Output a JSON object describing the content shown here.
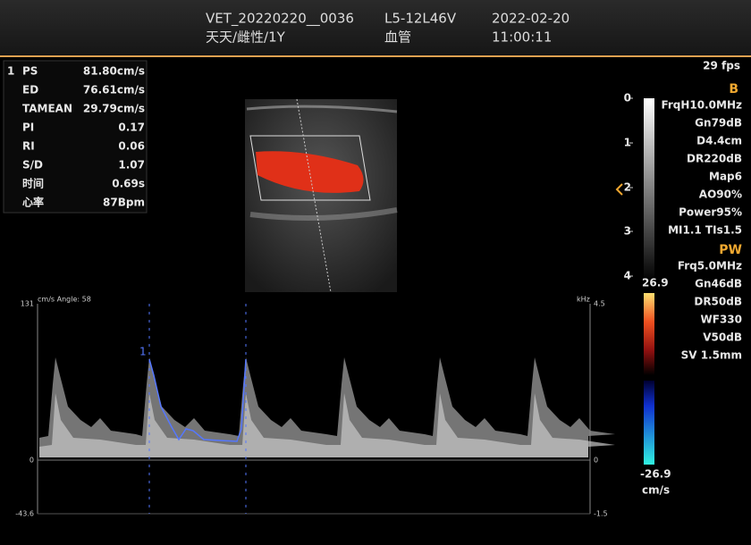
{
  "header": {
    "exam_id": "VET_20220220__0036",
    "patient": "天天/雌性/1Y",
    "probe": "L5-12L46V",
    "preset": "血管",
    "date": "2022-02-20",
    "time": "11:00:11"
  },
  "measurements": {
    "index": "1",
    "rows": [
      [
        "PS",
        "81.80cm/s"
      ],
      [
        "ED",
        "76.61cm/s"
      ],
      [
        "TAMEAN",
        "29.79cm/s"
      ],
      [
        "PI",
        "0.17"
      ],
      [
        "RI",
        "0.06"
      ],
      [
        "S/D",
        "1.07"
      ],
      [
        "时间",
        "0.69s"
      ],
      [
        "心率",
        "87Bpm"
      ]
    ]
  },
  "frame_rate": "29 fps",
  "b_mode": {
    "title": "B",
    "params": [
      "FrqH10.0MHz",
      "Gn79dB",
      "D4.4cm",
      "DR220dB",
      "Map6",
      "AO90%",
      "Power95%",
      "MI1.1 TIs1.5"
    ]
  },
  "pw_mode": {
    "title": "PW",
    "params": [
      "Frq5.0MHz",
      "Gn46dB",
      "DR50dB",
      "WF330",
      "V50dB",
      "SV 1.5mm"
    ]
  },
  "depth_scale": [
    "0",
    "1",
    "2",
    "3",
    "4"
  ],
  "color_scale": {
    "max": "26.9",
    "min": "-26.9",
    "unit": "cm/s"
  },
  "spectrum": {
    "unit_angle": "cm/s  Angle: 58",
    "left_ticks": [
      "131",
      "0",
      "-43.6"
    ],
    "right_unit": "kHz",
    "right_ticks": [
      "4.5",
      "0",
      "-1.5"
    ],
    "cycle_marker": "1"
  }
}
